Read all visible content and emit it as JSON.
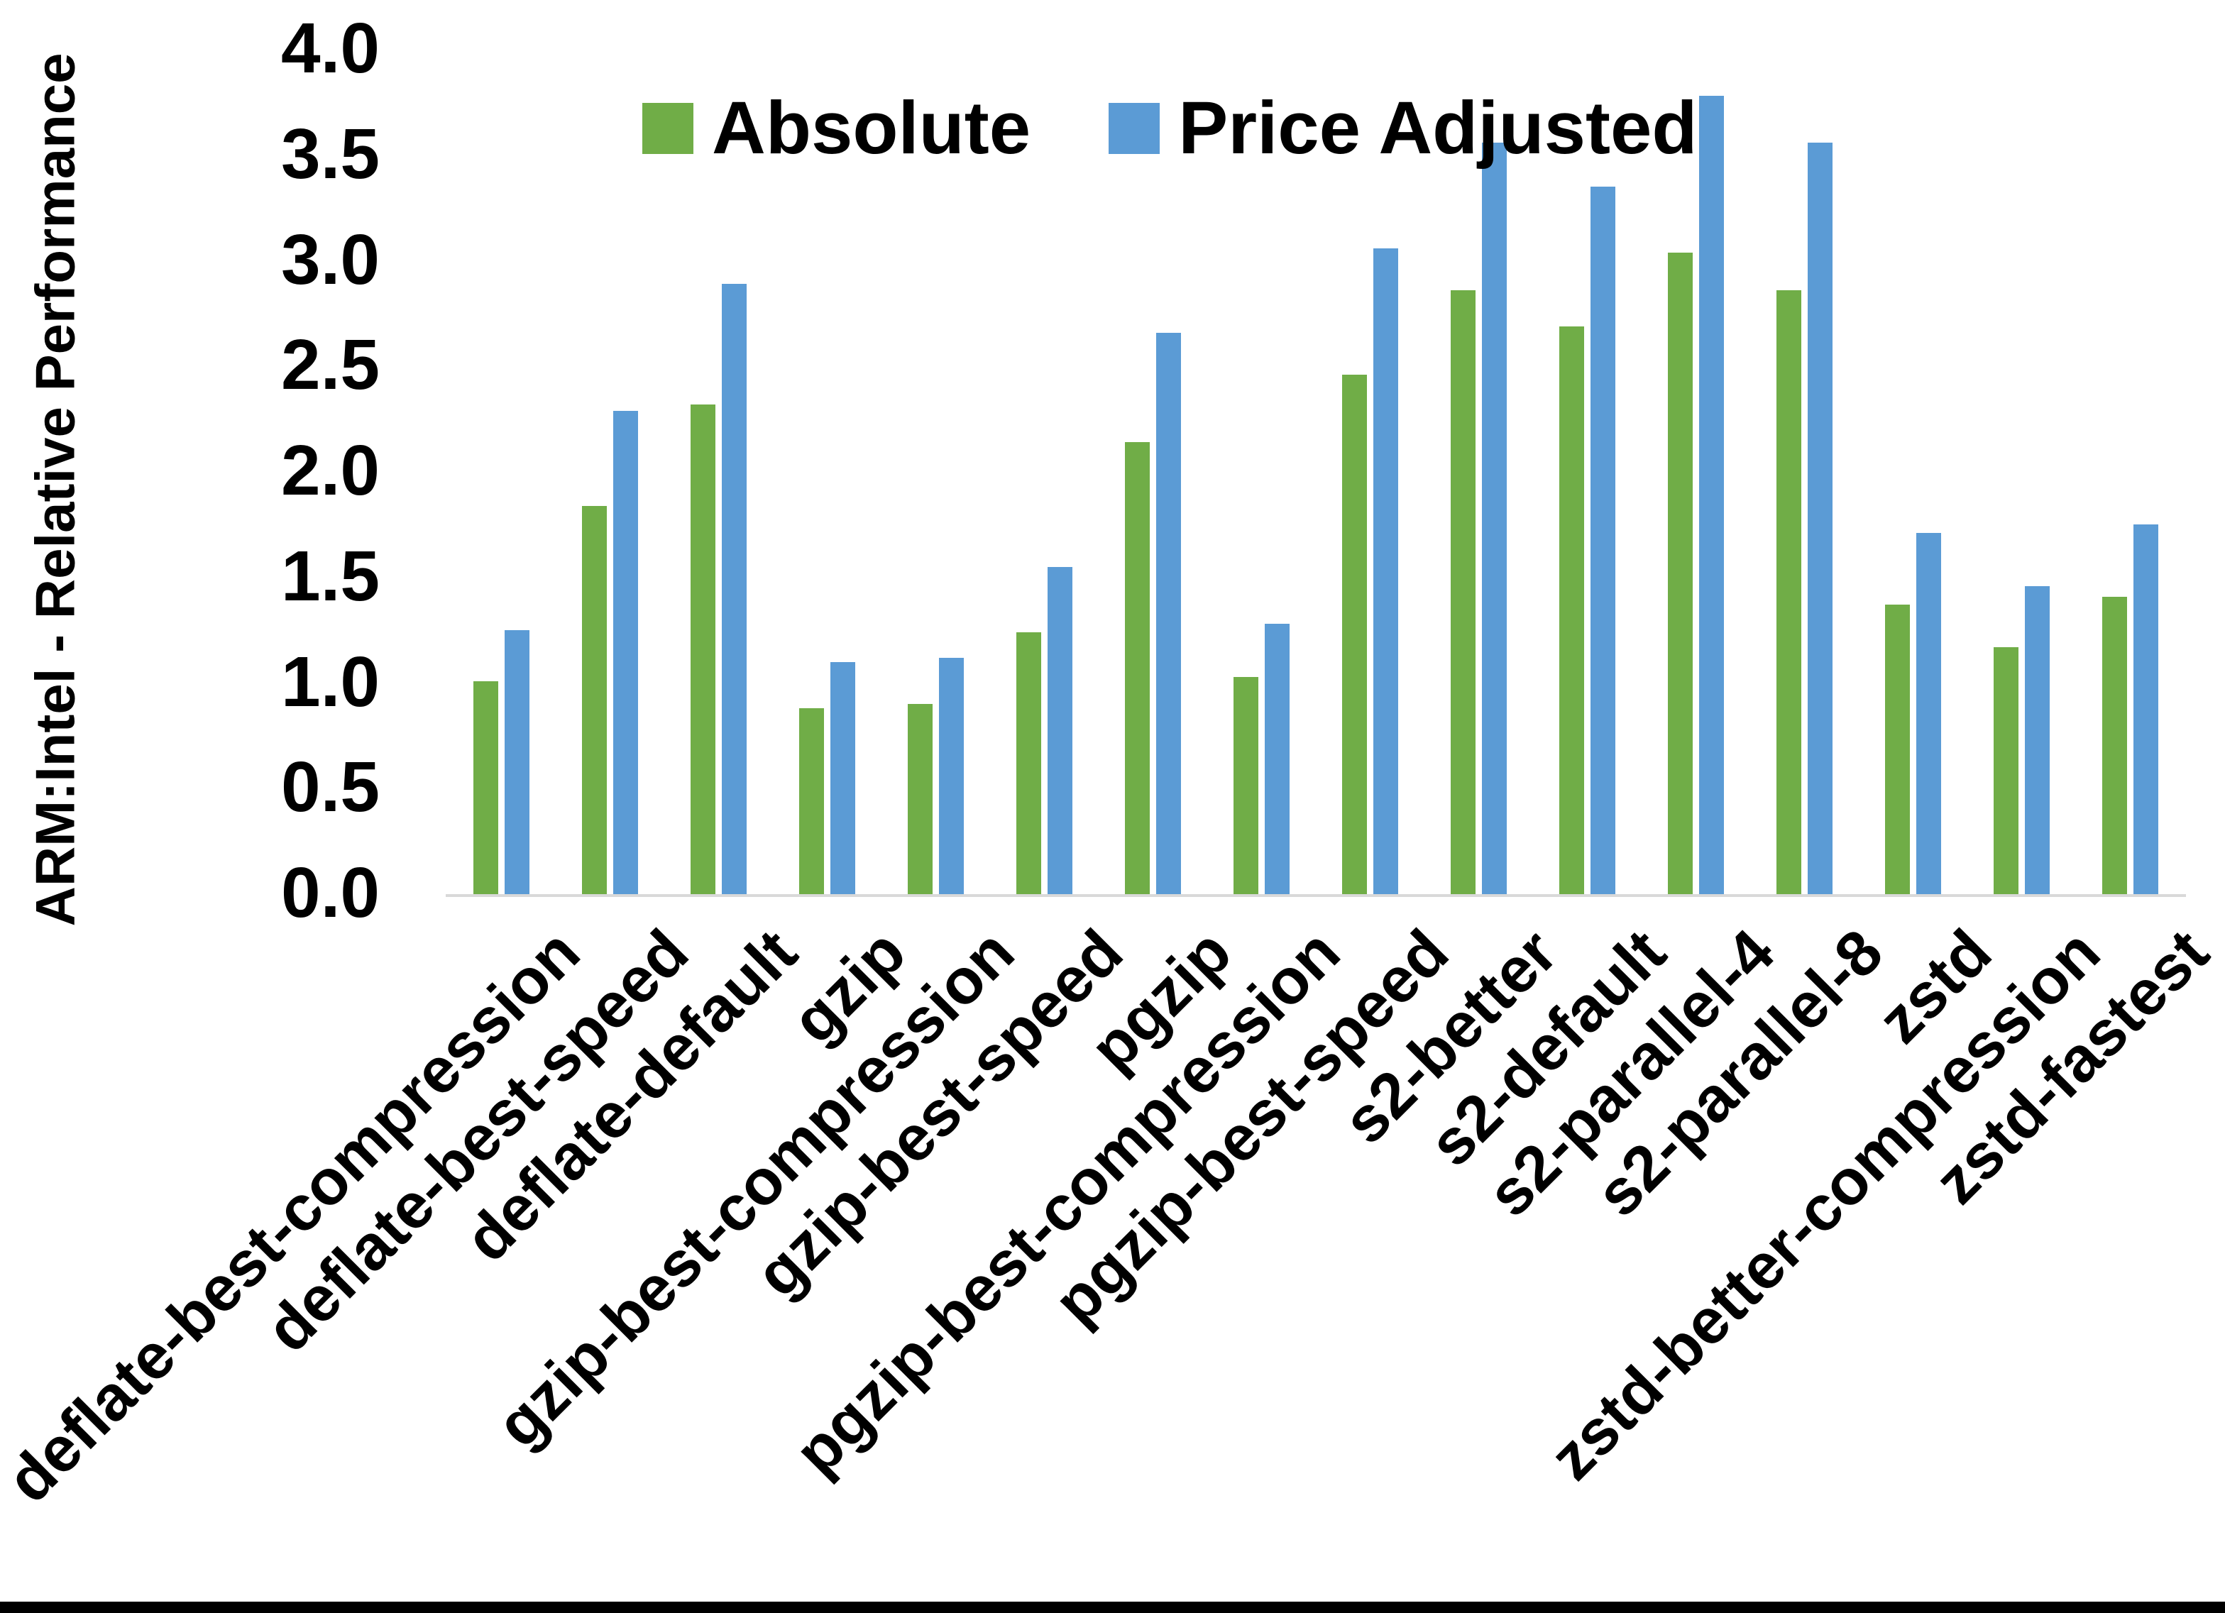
{
  "chart_data": {
    "type": "bar",
    "title": "",
    "ylabel": "ARM:Intel - Relative Performance",
    "xlabel": "",
    "ylim": [
      0.0,
      4.0
    ],
    "ytick_step": 0.5,
    "ytick_labels": [
      "0.0",
      "0.5",
      "1.0",
      "1.5",
      "2.0",
      "2.5",
      "3.0",
      "3.5",
      "4.0"
    ],
    "grid": false,
    "legend_position": "top-center",
    "axis_line_color": "#d9d9d9",
    "categories": [
      "deflate-best-compression",
      "deflate-best-speed",
      "deflate-default",
      "gzip",
      "gzip-best-compression",
      "gzip-best-speed",
      "pgzip",
      "pgzip-best-compression",
      "pgzip-best-speed",
      "s2-better",
      "s2-default",
      "s2-parallel-4",
      "s2-parallel-8",
      "zstd",
      "zstd-better-compression",
      "zstd-fastest"
    ],
    "series": [
      {
        "name": "Absolute",
        "color": "#70AD47",
        "values": [
          1.01,
          1.84,
          2.32,
          0.88,
          0.9,
          1.24,
          2.14,
          1.03,
          2.46,
          2.86,
          2.69,
          3.04,
          2.86,
          1.37,
          1.17,
          1.41
        ]
      },
      {
        "name": "Price Adjusted",
        "color": "#5B9BD5",
        "values": [
          1.25,
          2.29,
          2.89,
          1.1,
          1.12,
          1.55,
          2.66,
          1.28,
          3.06,
          3.56,
          3.35,
          3.78,
          3.56,
          1.71,
          1.46,
          1.75
        ]
      }
    ]
  }
}
